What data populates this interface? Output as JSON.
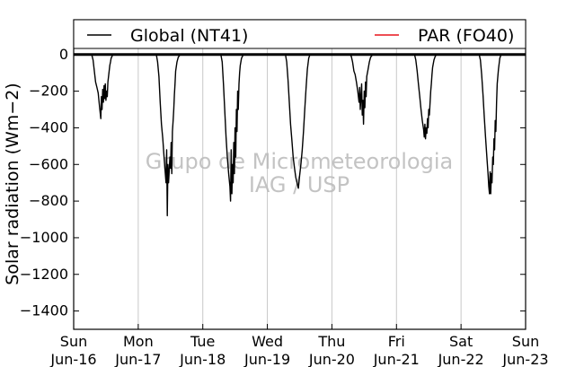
{
  "chart_data": {
    "type": "line",
    "title": "",
    "ylabel": "Solar radiation (Wm−2)",
    "xlabel": "",
    "ylim": [
      -1500,
      190
    ],
    "xlim": [
      0,
      7
    ],
    "yticks": [
      0,
      -200,
      -400,
      -600,
      -800,
      -1000,
      -1200,
      -1400
    ],
    "xticks": [
      {
        "x": 0,
        "line1": "Sun",
        "line2": "Jun-16"
      },
      {
        "x": 1,
        "line1": "Mon",
        "line2": "Jun-17"
      },
      {
        "x": 2,
        "line1": "Tue",
        "line2": "Jun-18"
      },
      {
        "x": 3,
        "line1": "Wed",
        "line2": "Jun-19"
      },
      {
        "x": 4,
        "line1": "Thu",
        "line2": "Jun-20"
      },
      {
        "x": 5,
        "line1": "Fri",
        "line2": "Jun-21"
      },
      {
        "x": 6,
        "line1": "Sat",
        "line2": "Jun-22"
      },
      {
        "x": 7,
        "line1": "Sun",
        "line2": "Jun-23"
      }
    ],
    "grid": "vertical",
    "legend": {
      "placement": "top",
      "items": [
        "Global (NT41)",
        "PAR (FO40)"
      ]
    },
    "series": [
      {
        "name": "Global (NT41)",
        "color": "#000000",
        "x": [
          0,
          0.28,
          0.3,
          0.32,
          0.34,
          0.36,
          0.38,
          0.4,
          0.42,
          0.43,
          0.44,
          0.45,
          0.46,
          0.47,
          0.48,
          0.49,
          0.5,
          0.51,
          0.52,
          0.53,
          0.54,
          0.55,
          0.56,
          0.57,
          0.58,
          0.6,
          0.62,
          0.64,
          0.66,
          1.28,
          1.3,
          1.32,
          1.34,
          1.36,
          1.38,
          1.4,
          1.42,
          1.43,
          1.44,
          1.45,
          1.46,
          1.47,
          1.48,
          1.49,
          1.5,
          1.51,
          1.52,
          1.53,
          1.54,
          1.55,
          1.56,
          1.57,
          1.58,
          1.6,
          1.62,
          1.64,
          1.66,
          1.68,
          2.28,
          2.3,
          2.32,
          2.34,
          2.36,
          2.38,
          2.4,
          2.42,
          2.43,
          2.44,
          2.45,
          2.46,
          2.47,
          2.48,
          2.49,
          2.5,
          2.51,
          2.52,
          2.53,
          2.54,
          2.55,
          2.56,
          2.57,
          2.58,
          2.6,
          2.62,
          2.64,
          2.66,
          2.68,
          3.28,
          3.3,
          3.32,
          3.34,
          3.36,
          3.38,
          3.4,
          3.42,
          3.44,
          3.46,
          3.48,
          3.5,
          3.52,
          3.54,
          3.56,
          3.58,
          3.6,
          3.62,
          3.64,
          3.66,
          3.68,
          4.28,
          4.3,
          4.32,
          4.34,
          4.36,
          4.38,
          4.4,
          4.42,
          4.43,
          4.44,
          4.45,
          4.46,
          4.47,
          4.48,
          4.49,
          4.5,
          4.51,
          4.52,
          4.53,
          4.54,
          4.56,
          4.58,
          4.6,
          4.62,
          4.64,
          4.66,
          5.28,
          5.3,
          5.32,
          5.34,
          5.36,
          5.38,
          5.4,
          5.42,
          5.43,
          5.44,
          5.45,
          5.46,
          5.47,
          5.48,
          5.49,
          5.5,
          5.51,
          5.52,
          5.53,
          5.54,
          5.55,
          5.56,
          5.58,
          5.6,
          5.62,
          5.64,
          5.66,
          5.68,
          6.28,
          6.3,
          6.32,
          6.34,
          6.36,
          6.38,
          6.4,
          6.42,
          6.43,
          6.44,
          6.45,
          6.46,
          6.47,
          6.48,
          6.49,
          6.5,
          6.51,
          6.52,
          6.53,
          6.54,
          6.55,
          6.56,
          6.58,
          6.6,
          6.62,
          6.64,
          6.66,
          6.68,
          7.0
        ],
        "y": [
          0,
          0,
          -30,
          -90,
          -150,
          -180,
          -210,
          -280,
          -350,
          -230,
          -300,
          -190,
          -260,
          -170,
          -240,
          -160,
          -250,
          -200,
          -230,
          -150,
          -120,
          -90,
          -60,
          -40,
          -20,
          -5,
          0,
          0,
          0,
          0,
          -40,
          -120,
          -260,
          -380,
          -460,
          -560,
          -650,
          -700,
          -520,
          -880,
          -600,
          -700,
          -640,
          -560,
          -620,
          -480,
          -650,
          -420,
          -360,
          -300,
          -220,
          -160,
          -90,
          -40,
          -15,
          -5,
          0,
          0,
          0,
          -40,
          -160,
          -300,
          -450,
          -560,
          -650,
          -720,
          -800,
          -520,
          -760,
          -600,
          -700,
          -480,
          -650,
          -400,
          -560,
          -300,
          -420,
          -200,
          -300,
          -160,
          -100,
          -60,
          -20,
          -5,
          0,
          0,
          0,
          0,
          -40,
          -140,
          -260,
          -380,
          -470,
          -560,
          -620,
          -670,
          -700,
          -730,
          -660,
          -600,
          -520,
          -420,
          -300,
          -180,
          -80,
          -20,
          0,
          0,
          0,
          -10,
          -40,
          -90,
          -110,
          -150,
          -200,
          -260,
          -180,
          -300,
          -230,
          -160,
          -330,
          -250,
          -380,
          -200,
          -290,
          -150,
          -230,
          -120,
          -80,
          -40,
          -15,
          -5,
          0,
          0,
          0,
          -30,
          -90,
          -160,
          -230,
          -300,
          -360,
          -410,
          -450,
          -380,
          -460,
          -400,
          -430,
          -350,
          -400,
          -300,
          -330,
          -260,
          -200,
          -160,
          -110,
          -70,
          -30,
          -10,
          0,
          0,
          0,
          0,
          0,
          -30,
          -110,
          -220,
          -340,
          -450,
          -560,
          -660,
          -720,
          -760,
          -640,
          -760,
          -650,
          -700,
          -560,
          -600,
          -460,
          -520,
          -360,
          -420,
          -260,
          -160,
          -80,
          -20,
          0,
          0,
          0,
          0,
          0
        ]
      },
      {
        "name": "PAR (FO40)",
        "color": "#e8141b",
        "x": [],
        "y": []
      }
    ]
  },
  "watermark": {
    "line1": "Grupo de Micrometeorologia",
    "line2": "IAG / USP"
  }
}
